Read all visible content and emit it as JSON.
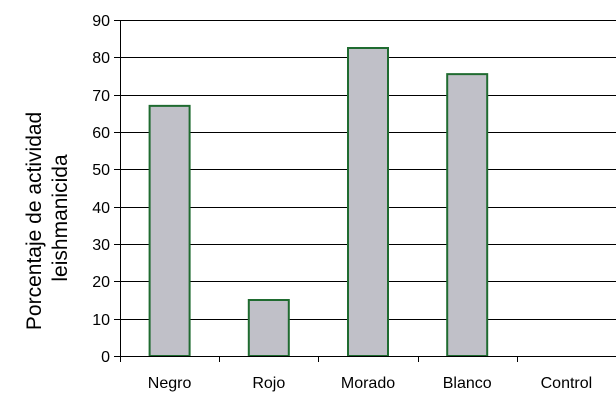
{
  "chart_data": {
    "type": "bar",
    "title": "",
    "xlabel": "",
    "ylabel_lines": [
      "Porcentaje de actividad",
      "leishmanicida"
    ],
    "categories": [
      "Negro",
      "Rojo",
      "Morado",
      "Blanco",
      "Control"
    ],
    "values": [
      67,
      15,
      82.5,
      75.5,
      0
    ],
    "ylim": [
      0,
      90
    ],
    "yticks": [
      0,
      10,
      20,
      30,
      40,
      50,
      60,
      70,
      80,
      90
    ],
    "grid": true,
    "legend": "none",
    "colors": {
      "bar_fill": "#c0c0c8",
      "bar_stroke": "#1f6b30",
      "grid": "#000000",
      "axis": "#000000"
    }
  }
}
